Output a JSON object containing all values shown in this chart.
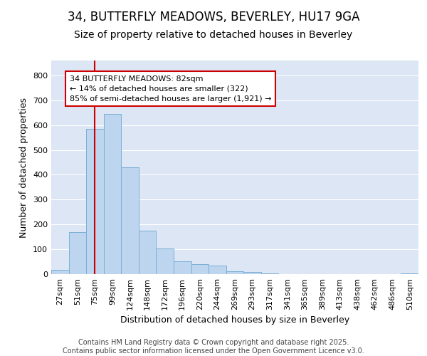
{
  "title_line1": "34, BUTTERFLY MEADOWS, BEVERLEY, HU17 9GA",
  "title_line2": "Size of property relative to detached houses in Beverley",
  "xlabel": "Distribution of detached houses by size in Beverley",
  "ylabel": "Number of detached properties",
  "categories": [
    "27sqm",
    "51sqm",
    "75sqm",
    "99sqm",
    "124sqm",
    "148sqm",
    "172sqm",
    "196sqm",
    "220sqm",
    "244sqm",
    "269sqm",
    "293sqm",
    "317sqm",
    "341sqm",
    "365sqm",
    "389sqm",
    "413sqm",
    "438sqm",
    "462sqm",
    "486sqm",
    "510sqm"
  ],
  "values": [
    18,
    170,
    585,
    645,
    430,
    175,
    103,
    52,
    40,
    35,
    12,
    10,
    2,
    1,
    0,
    0,
    0,
    0,
    0,
    0,
    2
  ],
  "bar_color": "#bdd5ee",
  "bar_edge_color": "#7aafd4",
  "plot_bg_color": "#dce6f5",
  "fig_bg_color": "#ffffff",
  "grid_color": "#ffffff",
  "red_line_x": 2,
  "annotation_title": "34 BUTTERFLY MEADOWS: 82sqm",
  "annotation_line1": "← 14% of detached houses are smaller (322)",
  "annotation_line2": "85% of semi-detached houses are larger (1,921) →",
  "annotation_box_color": "#ffffff",
  "annotation_border_color": "#cc0000",
  "red_line_color": "#cc0000",
  "ylim": [
    0,
    860
  ],
  "yticks": [
    0,
    100,
    200,
    300,
    400,
    500,
    600,
    700,
    800
  ],
  "footer_line1": "Contains HM Land Registry data © Crown copyright and database right 2025.",
  "footer_line2": "Contains public sector information licensed under the Open Government Licence v3.0.",
  "title_fontsize": 12,
  "subtitle_fontsize": 10,
  "axis_label_fontsize": 9,
  "tick_fontsize": 8,
  "annotation_fontsize": 8,
  "footer_fontsize": 7
}
